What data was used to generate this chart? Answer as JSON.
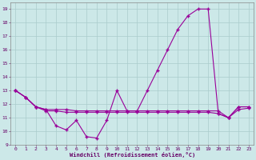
{
  "x": [
    0,
    1,
    2,
    3,
    4,
    5,
    6,
    7,
    8,
    9,
    10,
    11,
    12,
    13,
    14,
    15,
    16,
    17,
    18,
    19,
    20,
    21,
    22,
    23
  ],
  "line1": [
    13.0,
    12.5,
    11.8,
    11.6,
    10.4,
    10.1,
    10.8,
    9.6,
    9.5,
    10.8,
    13.0,
    11.5,
    11.5,
    13.0,
    14.5,
    16.0,
    17.5,
    18.5,
    19.0,
    19.0,
    11.3,
    11.0,
    11.8,
    11.8
  ],
  "line2": [
    13.0,
    12.5,
    11.8,
    11.6,
    11.6,
    11.6,
    11.5,
    11.5,
    11.5,
    11.5,
    11.5,
    11.5,
    11.5,
    11.5,
    11.5,
    11.5,
    11.5,
    11.5,
    11.5,
    11.5,
    11.5,
    11.0,
    11.8,
    11.8
  ],
  "line3": [
    13.0,
    12.5,
    11.8,
    11.5,
    11.5,
    11.4,
    11.4,
    11.4,
    11.4,
    11.4,
    11.4,
    11.4,
    11.4,
    11.4,
    11.4,
    11.4,
    11.4,
    11.4,
    11.4,
    11.4,
    11.3,
    11.0,
    11.6,
    11.7
  ],
  "line_color": "#990099",
  "bg_color": "#cce8e8",
  "grid_color": "#aacccc",
  "xlabel": "Windchill (Refroidissement éolien,°C)",
  "ylim": [
    9,
    19.5
  ],
  "xlim_min": -0.5,
  "xlim_max": 23.5,
  "yticks": [
    9,
    10,
    11,
    12,
    13,
    14,
    15,
    16,
    17,
    18,
    19
  ],
  "xticks": [
    0,
    1,
    2,
    3,
    4,
    5,
    6,
    7,
    8,
    9,
    10,
    11,
    12,
    13,
    14,
    15,
    16,
    17,
    18,
    19,
    20,
    21,
    22,
    23
  ],
  "tick_label_color": "#660066",
  "xlabel_color": "#660066"
}
